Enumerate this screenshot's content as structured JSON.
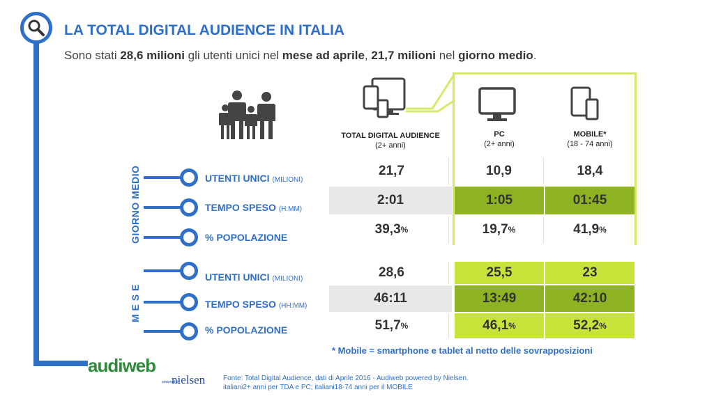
{
  "header": {
    "title": "LA TOTAL DIGITAL AUDIENCE IN ITALIA",
    "subtitle_parts": [
      "Sono stati ",
      "28,6 milioni",
      " gli utenti unici nel ",
      "mese ad aprile",
      ", ",
      "21,7 milioni",
      " nel ",
      "giorno medio",
      "."
    ]
  },
  "columns": {
    "tda": {
      "label": "TOTAL DIGITAL AUDIENCE",
      "sub": "(2+ anni)"
    },
    "pc": {
      "label": "PC",
      "sub": "(2+ anni)"
    },
    "mobile": {
      "label": "MOBILE*",
      "sub": "(18 - 74 anni)"
    }
  },
  "groups": {
    "giorno": "GIORNO MEDIO",
    "mese": "M E S E"
  },
  "rows": [
    {
      "label": "UTENTI UNICI",
      "unit": "(MILIONI)",
      "tda": "21,7",
      "tda_pct": "",
      "pc": "10,9",
      "pc_pct": "",
      "mobile": "18,4",
      "mobile_pct": ""
    },
    {
      "label": "TEMPO SPESO",
      "unit": "(H:MM)",
      "tda": "2:01",
      "tda_pct": "",
      "pc": "1:05",
      "pc_pct": "",
      "mobile": "01:45",
      "mobile_pct": ""
    },
    {
      "label": "% POPOLAZIONE",
      "unit": "",
      "tda": "39,3",
      "tda_pct": "%",
      "pc": "19,7",
      "pc_pct": "%",
      "mobile": "41,9",
      "mobile_pct": "%"
    },
    {
      "label": "UTENTI UNICI",
      "unit": "(MILIONI)",
      "tda": "28,6",
      "tda_pct": "",
      "pc": "25,5",
      "pc_pct": "",
      "mobile": "23",
      "mobile_pct": ""
    },
    {
      "label": "TEMPO SPESO",
      "unit": "(HH:MM)",
      "tda": "46:11",
      "tda_pct": "",
      "pc": "13:49",
      "pc_pct": "",
      "mobile": "42:10",
      "mobile_pct": ""
    },
    {
      "label": "% POPOLAZIONE",
      "unit": "",
      "tda": "51,7",
      "tda_pct": "%",
      "pc": "46,1",
      "pc_pct": "%",
      "mobile": "52,2",
      "mobile_pct": "%"
    }
  ],
  "note": "* Mobile = smartphone e tablet al netto delle sovrapposizioni",
  "source": {
    "line1": "Fonte: Total Digital Audience, dati di Aprile 2016 - Audiweb powered by Nielsen.",
    "line2": "italiani2+ anni per TDA e PC; italiani18-74 anni per il MOBILE"
  },
  "logos": {
    "audiweb": "audiweb",
    "nielsen": "nielsen",
    "powered": "powered by"
  },
  "colors": {
    "accent_blue": "#2f6fc7",
    "lime_border": "#d6ea6a",
    "olive_fill": "#8db323",
    "lime_fill": "#c9e33a",
    "gray_fill": "#e8e8e8"
  },
  "icons": {
    "search": "magnifier-icon",
    "family": "family-icon",
    "devices": "devices-icon",
    "pc": "monitor-icon",
    "mobile": "tablet-phone-icon"
  },
  "chart_data": {
    "type": "table",
    "title": "LA TOTAL DIGITAL AUDIENCE IN ITALIA",
    "columns": [
      "TOTAL DIGITAL AUDIENCE (2+ anni)",
      "PC (2+ anni)",
      "MOBILE* (18 - 74 anni)"
    ],
    "groups": [
      {
        "name": "GIORNO MEDIO",
        "rows": [
          {
            "metric": "UTENTI UNICI (MILIONI)",
            "values": [
              21.7,
              10.9,
              18.4
            ]
          },
          {
            "metric": "TEMPO SPESO (H:MM)",
            "values": [
              "2:01",
              "1:05",
              "01:45"
            ]
          },
          {
            "metric": "% POPOLAZIONE",
            "values": [
              39.3,
              19.7,
              41.9
            ]
          }
        ]
      },
      {
        "name": "M E S E",
        "rows": [
          {
            "metric": "UTENTI UNICI (MILIONI)",
            "values": [
              28.6,
              25.5,
              23
            ]
          },
          {
            "metric": "TEMPO SPESO (HH:MM)",
            "values": [
              "46:11",
              "13:49",
              "42:10"
            ]
          },
          {
            "metric": "% POPOLAZIONE",
            "values": [
              51.7,
              46.1,
              52.2
            ]
          }
        ]
      }
    ]
  }
}
